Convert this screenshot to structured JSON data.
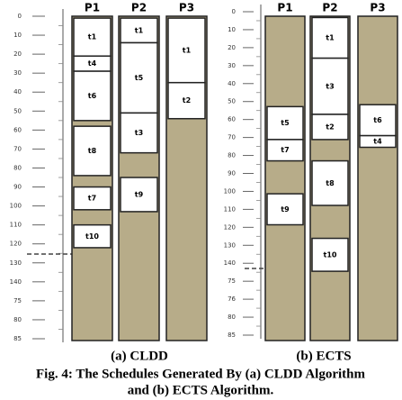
{
  "panels": [
    {
      "caption": "(a) CLDD",
      "ruler": [
        "0",
        "10",
        "20",
        "30",
        "40",
        "50",
        "60",
        "70",
        "80",
        "90",
        "100",
        "110",
        "120",
        "130",
        "140",
        "75",
        "80",
        "85"
      ],
      "processors": [
        {
          "name": "P1",
          "tasks": [
            {
              "label": "t1",
              "start": 1,
              "end": 21
            },
            {
              "label": "t4",
              "start": 21,
              "end": 29
            },
            {
              "label": "t6",
              "start": 29,
              "end": 55
            },
            {
              "label": "t8",
              "start": 58,
              "end": 84
            },
            {
              "label": "t7",
              "start": 90,
              "end": 102
            },
            {
              "label": "t10",
              "start": 110,
              "end": 122
            }
          ]
        },
        {
          "name": "P2",
          "tasks": [
            {
              "label": "t1",
              "start": 1,
              "end": 14
            },
            {
              "label": "t5",
              "start": 14,
              "end": 51
            },
            {
              "label": "t3",
              "start": 51,
              "end": 72
            },
            {
              "label": "t9",
              "start": 85,
              "end": 103
            }
          ]
        },
        {
          "name": "P3",
          "tasks": [
            {
              "label": "t1",
              "start": 1,
              "end": 35
            },
            {
              "label": "t2",
              "start": 35,
              "end": 54
            }
          ]
        }
      ]
    },
    {
      "caption": "(b) ECTS",
      "ruler": [
        "0",
        "10",
        "20",
        "30",
        "40",
        "50",
        "60",
        "70",
        "80",
        "90",
        "100",
        "110",
        "120",
        "130",
        "140",
        "75",
        "76",
        "80",
        "85"
      ],
      "processors": [
        {
          "name": "P1",
          "tasks": [
            {
              "label": "t5",
              "start": 49,
              "end": 66
            },
            {
              "label": "t7",
              "start": 66,
              "end": 77
            },
            {
              "label": "t9",
              "start": 94,
              "end": 110
            }
          ]
        },
        {
          "name": "P2",
          "tasks": [
            {
              "label": "t1",
              "start": 3,
              "end": 24
            },
            {
              "label": "t3",
              "start": 24,
              "end": 53
            },
            {
              "label": "t2",
              "start": 53,
              "end": 66
            },
            {
              "label": "t8",
              "start": 77,
              "end": 100
            },
            {
              "label": "t10",
              "start": 117,
              "end": 134
            }
          ]
        },
        {
          "name": "P3",
          "tasks": [
            {
              "label": "t6",
              "start": 48,
              "end": 64
            },
            {
              "label": "t4",
              "start": 64,
              "end": 70
            }
          ]
        }
      ]
    }
  ],
  "figure_caption": [
    "Fig. 4: The Schedules Generated By (a) CLDD Algorithm",
    "and (b) ECTS Algorithm."
  ]
}
